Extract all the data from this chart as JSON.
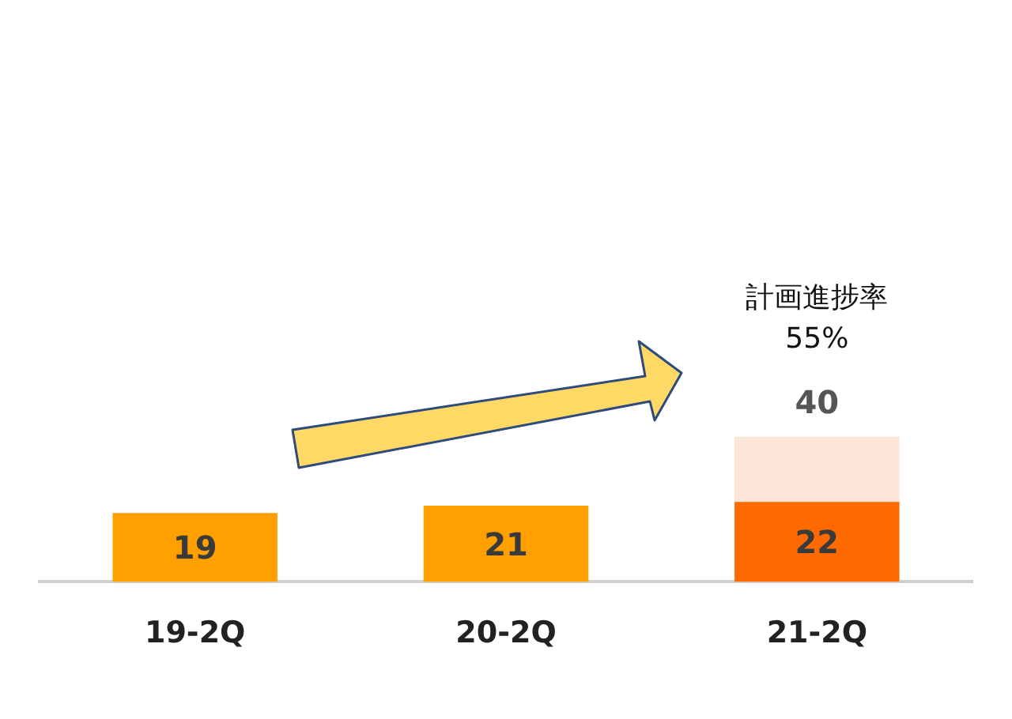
{
  "chart_data": {
    "type": "bar",
    "categories": [
      "19-2Q",
      "20-2Q",
      "21-2Q"
    ],
    "series": [
      {
        "type": "bar",
        "colors": [
          "#ffa000",
          "#ffa000",
          "#ff6a00"
        ],
        "values": [
          19,
          21,
          22
        ]
      },
      {
        "type": "bar",
        "color": "#fce4d6",
        "values": [
          null,
          null,
          40
        ]
      }
    ],
    "annotations": [
      "計画進捗率",
      "55%"
    ],
    "data_labels": true,
    "legend": false,
    "grid": false
  }
}
